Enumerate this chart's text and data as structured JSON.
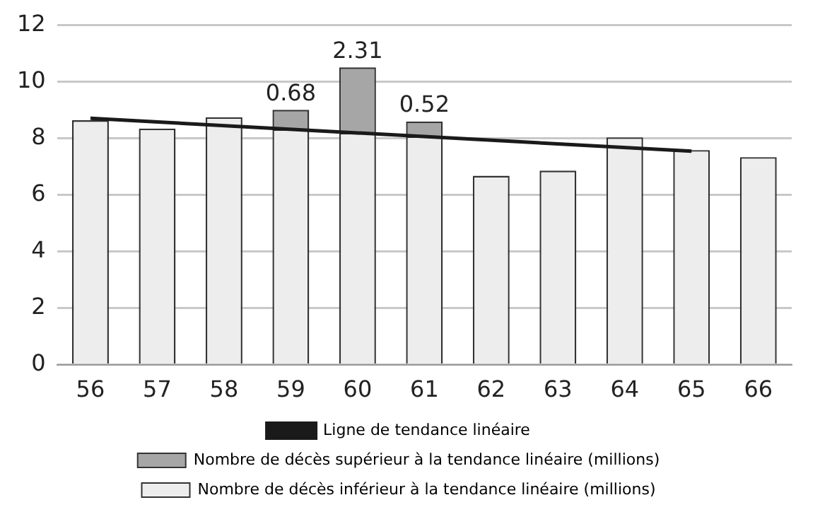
{
  "chart_data": {
    "type": "bar",
    "stacked": true,
    "categories": [
      "56",
      "57",
      "58",
      "59",
      "60",
      "61",
      "62",
      "63",
      "64",
      "65",
      "66"
    ],
    "series": [
      {
        "name": "Nombre de décès inférieur à la tendance linéaire (millions)",
        "color": "#ededed",
        "values": [
          8.63,
          8.34,
          8.74,
          8.32,
          8.19,
          8.07,
          6.67,
          6.85,
          8.03,
          7.58,
          7.33
        ]
      },
      {
        "name": "Nombre de décès supérieur à la tendance linéaire (millions)",
        "color": "#a6a6a6",
        "values": [
          null,
          null,
          null,
          0.68,
          2.31,
          0.52,
          null,
          null,
          null,
          null,
          null
        ],
        "value_labels": [
          null,
          null,
          null,
          "0.68",
          "2.31",
          "0.52",
          null,
          null,
          null,
          null,
          null
        ]
      },
      {
        "name": "Ligne de tendance linéaire",
        "type": "line",
        "color": "#1a1a1a",
        "x": [
          "56",
          "65"
        ],
        "values": [
          8.7,
          7.54
        ]
      }
    ],
    "ylim": [
      0,
      12
    ],
    "yticks": [
      0,
      2,
      4,
      6,
      8,
      10,
      12
    ],
    "grid": "y",
    "legend": "bottom",
    "marker": "none"
  }
}
